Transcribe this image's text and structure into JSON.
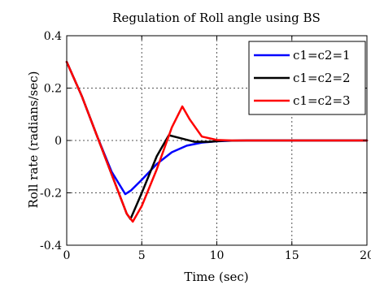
{
  "chart_data": {
    "type": "line",
    "title": "Regulation of Roll angle using BS",
    "xlabel": "Time (sec)",
    "ylabel": "Roll rate (radians/sec)",
    "xlim": [
      0,
      20
    ],
    "ylim": [
      -0.4,
      0.4
    ],
    "xticks": [
      0,
      5,
      10,
      15,
      20
    ],
    "xtick_labels": [
      "0",
      "5",
      "10",
      "15",
      "20"
    ],
    "yticks": [
      0.4,
      0.2,
      0,
      -0.2,
      -0.4
    ],
    "ytick_labels": [
      "0.4",
      "0.2",
      "0",
      "-0.2",
      "-0.4"
    ],
    "grid": true,
    "legend_position": "top-right",
    "series": [
      {
        "name": "c1=c2=1",
        "color": "#0000ff",
        "x": [
          0,
          1,
          2,
          3,
          3.9,
          4.3,
          5,
          6,
          7,
          8,
          9,
          10,
          11,
          12,
          20
        ],
        "y": [
          0.3,
          0.17,
          0.02,
          -0.12,
          -0.205,
          -0.19,
          -0.15,
          -0.09,
          -0.045,
          -0.02,
          -0.008,
          -0.003,
          -0.001,
          0,
          0
        ]
      },
      {
        "name": "c1=c2=2",
        "color": "#000000",
        "x": [
          0,
          1,
          2,
          3,
          4,
          4.25,
          5,
          6,
          6.8,
          7.5,
          8.5,
          9.5,
          10.5,
          12,
          20
        ],
        "y": [
          0.3,
          0.17,
          0.02,
          -0.13,
          -0.28,
          -0.3,
          -0.2,
          -0.06,
          0.02,
          0.01,
          -0.005,
          -0.005,
          -0.001,
          0,
          0
        ]
      },
      {
        "name": "c1=c2=3",
        "color": "#ff0000",
        "x": [
          0,
          1,
          2,
          3,
          4,
          4.4,
          5,
          6,
          7,
          7.7,
          8.2,
          9,
          10,
          11,
          20
        ],
        "y": [
          0.3,
          0.17,
          0.02,
          -0.13,
          -0.28,
          -0.31,
          -0.25,
          -0.11,
          0.05,
          0.13,
          0.08,
          0.015,
          0.002,
          0,
          0
        ]
      }
    ]
  }
}
